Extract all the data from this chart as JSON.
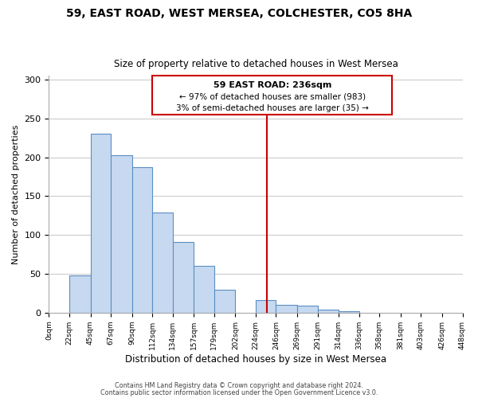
{
  "title": "59, EAST ROAD, WEST MERSEA, COLCHESTER, CO5 8HA",
  "subtitle": "Size of property relative to detached houses in West Mersea",
  "xlabel": "Distribution of detached houses by size in West Mersea",
  "ylabel": "Number of detached properties",
  "footnote1": "Contains HM Land Registry data © Crown copyright and database right 2024.",
  "footnote2": "Contains public sector information licensed under the Open Government Licence v3.0.",
  "bar_color": "#c6d9f0",
  "bar_edge_color": "#5a8fc3",
  "vline_color": "#cc0000",
  "vline_x": 236,
  "annotation_title": "59 EAST ROAD: 236sqm",
  "annotation_line1": "← 97% of detached houses are smaller (983)",
  "annotation_line2": "3% of semi-detached houses are larger (35) →",
  "bin_edges": [
    0,
    22,
    45,
    67,
    90,
    112,
    134,
    157,
    179,
    202,
    224,
    246,
    269,
    291,
    314,
    336,
    358,
    381,
    403,
    426,
    448
  ],
  "bar_heights": [
    0,
    48,
    230,
    203,
    187,
    129,
    91,
    60,
    30,
    0,
    16,
    10,
    9,
    4,
    2,
    0,
    0,
    0,
    0,
    0
  ],
  "tick_labels": [
    "0sqm",
    "22sqm",
    "45sqm",
    "67sqm",
    "90sqm",
    "112sqm",
    "134sqm",
    "157sqm",
    "179sqm",
    "202sqm",
    "224sqm",
    "246sqm",
    "269sqm",
    "291sqm",
    "314sqm",
    "336sqm",
    "358sqm",
    "381sqm",
    "403sqm",
    "426sqm",
    "448sqm"
  ],
  "ylim": [
    0,
    305
  ],
  "yticks": [
    0,
    50,
    100,
    150,
    200,
    250,
    300
  ],
  "background_color": "#ffffff",
  "grid_color": "#cccccc"
}
